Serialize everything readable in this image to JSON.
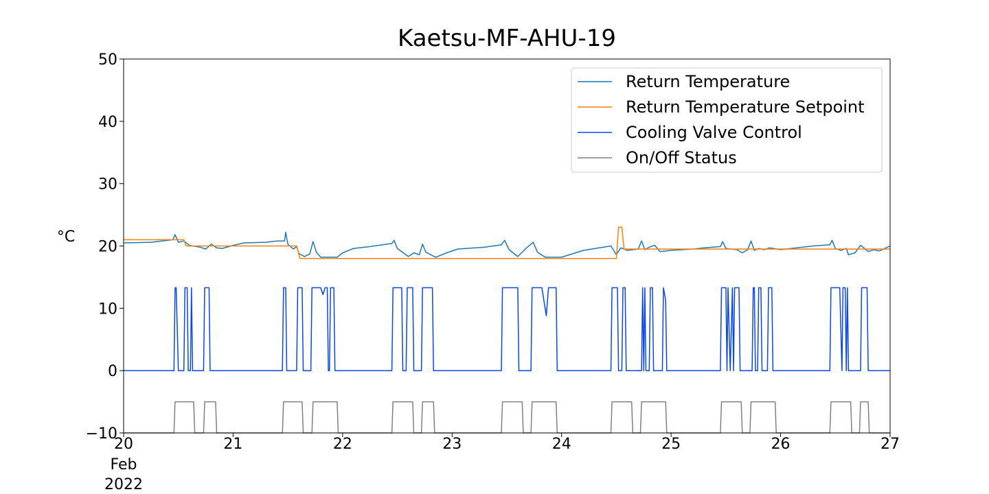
{
  "chart_data": {
    "type": "line",
    "title": "Kaetsu-MF-AHU-19",
    "xlabel": "",
    "ylabel": "°C",
    "xlim": [
      20,
      27
    ],
    "ylim": [
      -10,
      50
    ],
    "x_ticks": [
      20,
      21,
      22,
      23,
      24,
      25,
      26,
      27
    ],
    "x_tick_labels": [
      "20",
      "21",
      "22",
      "23",
      "24",
      "25",
      "26",
      "27"
    ],
    "x_first_tick_sublabels": [
      "Feb",
      "2022"
    ],
    "y_ticks": [
      -10,
      0,
      10,
      20,
      30,
      40,
      50
    ],
    "y_tick_labels": [
      "−10",
      "0",
      "10",
      "20",
      "30",
      "40",
      "50"
    ],
    "grid": false,
    "legend": "top-right",
    "series": [
      {
        "name": "Return Temperature",
        "color": "#1f77b4",
        "points": [
          [
            20.0,
            20.5
          ],
          [
            20.25,
            20.6
          ],
          [
            20.45,
            21.0
          ],
          [
            20.47,
            21.8
          ],
          [
            20.5,
            20.6
          ],
          [
            20.55,
            20.8
          ],
          [
            20.6,
            20.1
          ],
          [
            20.7,
            19.8
          ],
          [
            20.75,
            19.5
          ],
          [
            20.8,
            20.3
          ],
          [
            20.85,
            19.7
          ],
          [
            20.9,
            19.6
          ],
          [
            21.0,
            20.1
          ],
          [
            21.1,
            20.5
          ],
          [
            21.3,
            20.6
          ],
          [
            21.4,
            20.8
          ],
          [
            21.47,
            20.8
          ],
          [
            21.48,
            22.2
          ],
          [
            21.5,
            20.3
          ],
          [
            21.55,
            19.5
          ],
          [
            21.58,
            19.9
          ],
          [
            21.6,
            18.8
          ],
          [
            21.65,
            18.3
          ],
          [
            21.7,
            18.7
          ],
          [
            21.73,
            20.7
          ],
          [
            21.76,
            19.0
          ],
          [
            21.8,
            18.2
          ],
          [
            21.95,
            18.2
          ],
          [
            22.0,
            18.9
          ],
          [
            22.1,
            19.6
          ],
          [
            22.25,
            19.9
          ],
          [
            22.45,
            20.4
          ],
          [
            22.47,
            20.9
          ],
          [
            22.5,
            19.6
          ],
          [
            22.6,
            18.3
          ],
          [
            22.65,
            18.9
          ],
          [
            22.7,
            18.6
          ],
          [
            22.73,
            20.3
          ],
          [
            22.76,
            19.0
          ],
          [
            22.85,
            18.2
          ],
          [
            22.95,
            18.9
          ],
          [
            23.05,
            19.5
          ],
          [
            23.3,
            19.8
          ],
          [
            23.45,
            20.2
          ],
          [
            23.48,
            20.9
          ],
          [
            23.52,
            19.4
          ],
          [
            23.6,
            18.3
          ],
          [
            23.68,
            19.7
          ],
          [
            23.74,
            20.6
          ],
          [
            23.78,
            19.0
          ],
          [
            23.85,
            18.2
          ],
          [
            24.0,
            18.2
          ],
          [
            24.2,
            19.3
          ],
          [
            24.45,
            20.0
          ],
          [
            24.5,
            18.6
          ],
          [
            24.54,
            19.7
          ],
          [
            24.6,
            19.3
          ],
          [
            24.7,
            19.5
          ],
          [
            24.73,
            20.8
          ],
          [
            24.76,
            19.4
          ],
          [
            24.8,
            19.8
          ],
          [
            24.85,
            20.1
          ],
          [
            24.9,
            19.1
          ],
          [
            25.0,
            19.3
          ],
          [
            25.2,
            19.5
          ],
          [
            25.3,
            19.7
          ],
          [
            25.45,
            19.9
          ],
          [
            25.47,
            20.7
          ],
          [
            25.5,
            19.6
          ],
          [
            25.6,
            19.4
          ],
          [
            25.65,
            18.9
          ],
          [
            25.7,
            19.4
          ],
          [
            25.73,
            20.8
          ],
          [
            25.76,
            19.3
          ],
          [
            25.8,
            19.6
          ],
          [
            25.85,
            19.4
          ],
          [
            25.9,
            19.7
          ],
          [
            26.0,
            19.4
          ],
          [
            26.2,
            19.8
          ],
          [
            26.3,
            20.0
          ],
          [
            26.45,
            20.2
          ],
          [
            26.47,
            20.9
          ],
          [
            26.5,
            19.6
          ],
          [
            26.55,
            19.3
          ],
          [
            26.6,
            19.6
          ],
          [
            26.62,
            18.6
          ],
          [
            26.68,
            18.9
          ],
          [
            26.73,
            20.1
          ],
          [
            26.76,
            19.7
          ],
          [
            26.8,
            19.1
          ],
          [
            26.85,
            19.4
          ],
          [
            26.9,
            19.2
          ],
          [
            27.0,
            20.0
          ]
        ]
      },
      {
        "name": "Return Temperature Setpoint",
        "color": "#ff7f0e",
        "points": [
          [
            20.0,
            21.0
          ],
          [
            20.55,
            21.0
          ],
          [
            20.57,
            20.0
          ],
          [
            21.58,
            20.0
          ],
          [
            21.61,
            18.0
          ],
          [
            24.5,
            18.0
          ],
          [
            24.52,
            23.0
          ],
          [
            24.55,
            23.0
          ],
          [
            24.57,
            19.5
          ],
          [
            27.0,
            19.5
          ]
        ]
      },
      {
        "name": "Cooling Valve Control",
        "color": "#0b47e4",
        "points": [
          [
            20.0,
            0
          ],
          [
            20.46,
            0
          ],
          [
            20.47,
            13.3
          ],
          [
            20.48,
            13.3
          ],
          [
            20.5,
            0
          ],
          [
            20.55,
            0
          ],
          [
            20.56,
            13.3
          ],
          [
            20.58,
            13.3
          ],
          [
            20.59,
            0
          ],
          [
            20.61,
            0
          ],
          [
            20.62,
            13.3
          ],
          [
            20.63,
            0
          ],
          [
            20.73,
            0
          ],
          [
            20.74,
            13.3
          ],
          [
            20.78,
            13.3
          ],
          [
            20.79,
            0
          ],
          [
            21.45,
            0
          ],
          [
            21.46,
            13.3
          ],
          [
            21.48,
            13.3
          ],
          [
            21.49,
            0
          ],
          [
            21.58,
            0
          ],
          [
            21.59,
            13.3
          ],
          [
            21.63,
            13.3
          ],
          [
            21.64,
            0
          ],
          [
            21.71,
            0
          ],
          [
            21.72,
            13.3
          ],
          [
            21.8,
            13.3
          ],
          [
            21.82,
            12.2
          ],
          [
            21.84,
            13.3
          ],
          [
            21.86,
            13.3
          ],
          [
            21.87,
            0
          ],
          [
            21.88,
            0
          ],
          [
            21.89,
            13.3
          ],
          [
            21.92,
            13.3
          ],
          [
            21.93,
            0
          ],
          [
            22.45,
            0
          ],
          [
            22.46,
            13.3
          ],
          [
            22.54,
            13.3
          ],
          [
            22.55,
            0
          ],
          [
            22.58,
            0
          ],
          [
            22.59,
            13.3
          ],
          [
            22.64,
            13.3
          ],
          [
            22.65,
            0
          ],
          [
            22.72,
            0
          ],
          [
            22.73,
            13.3
          ],
          [
            22.82,
            13.3
          ],
          [
            22.83,
            0
          ],
          [
            23.45,
            0
          ],
          [
            23.46,
            13.3
          ],
          [
            23.6,
            13.3
          ],
          [
            23.61,
            0
          ],
          [
            23.72,
            0
          ],
          [
            23.73,
            13.3
          ],
          [
            23.82,
            13.3
          ],
          [
            23.86,
            8.8
          ],
          [
            23.88,
            13.3
          ],
          [
            23.95,
            13.3
          ],
          [
            23.96,
            0
          ],
          [
            24.45,
            0
          ],
          [
            24.46,
            13.3
          ],
          [
            24.51,
            13.3
          ],
          [
            24.52,
            0
          ],
          [
            24.55,
            0
          ],
          [
            24.56,
            13.3
          ],
          [
            24.58,
            13.3
          ],
          [
            24.59,
            0
          ],
          [
            24.73,
            0
          ],
          [
            24.74,
            13.3
          ],
          [
            24.75,
            0
          ],
          [
            24.76,
            13.3
          ],
          [
            24.77,
            0
          ],
          [
            24.8,
            0
          ],
          [
            24.81,
            13.3
          ],
          [
            24.83,
            13.3
          ],
          [
            24.84,
            0
          ],
          [
            24.92,
            0
          ],
          [
            24.93,
            13.3
          ],
          [
            24.95,
            11.3
          ],
          [
            24.96,
            0
          ],
          [
            25.45,
            0
          ],
          [
            25.46,
            13.3
          ],
          [
            25.5,
            13.3
          ],
          [
            25.51,
            0
          ],
          [
            25.52,
            13.3
          ],
          [
            25.54,
            0
          ],
          [
            25.56,
            13.3
          ],
          [
            25.57,
            0
          ],
          [
            25.58,
            13.3
          ],
          [
            25.62,
            13.3
          ],
          [
            25.63,
            0
          ],
          [
            25.74,
            0
          ],
          [
            25.75,
            13.3
          ],
          [
            25.76,
            13.3
          ],
          [
            25.77,
            0
          ],
          [
            25.79,
            0
          ],
          [
            25.8,
            13.3
          ],
          [
            25.82,
            13.3
          ],
          [
            25.83,
            0
          ],
          [
            25.88,
            0
          ],
          [
            25.89,
            13.3
          ],
          [
            25.92,
            13.3
          ],
          [
            25.93,
            0
          ],
          [
            26.45,
            0
          ],
          [
            26.46,
            13.3
          ],
          [
            26.54,
            13.3
          ],
          [
            26.56,
            0
          ],
          [
            26.57,
            13.3
          ],
          [
            26.59,
            13.3
          ],
          [
            26.6,
            0
          ],
          [
            26.61,
            13.3
          ],
          [
            26.62,
            0
          ],
          [
            26.73,
            0
          ],
          [
            26.74,
            13.3
          ],
          [
            26.79,
            13.3
          ],
          [
            26.8,
            0
          ],
          [
            27.0,
            0
          ]
        ]
      },
      {
        "name": "On/Off Status",
        "color": "#808080",
        "points": [
          [
            20.0,
            -10
          ],
          [
            20.46,
            -10
          ],
          [
            20.47,
            -5
          ],
          [
            20.64,
            -5
          ],
          [
            20.65,
            -10
          ],
          [
            20.73,
            -10
          ],
          [
            20.74,
            -5
          ],
          [
            20.84,
            -5
          ],
          [
            20.85,
            -10
          ],
          [
            21.45,
            -10
          ],
          [
            21.46,
            -5
          ],
          [
            21.63,
            -5
          ],
          [
            21.64,
            -10
          ],
          [
            21.72,
            -10
          ],
          [
            21.73,
            -5
          ],
          [
            21.95,
            -5
          ],
          [
            21.96,
            -10
          ],
          [
            22.45,
            -10
          ],
          [
            22.46,
            -5
          ],
          [
            22.64,
            -5
          ],
          [
            22.65,
            -10
          ],
          [
            22.72,
            -10
          ],
          [
            22.73,
            -5
          ],
          [
            22.83,
            -5
          ],
          [
            22.84,
            -10
          ],
          [
            23.45,
            -10
          ],
          [
            23.46,
            -5
          ],
          [
            23.64,
            -5
          ],
          [
            23.65,
            -10
          ],
          [
            23.72,
            -10
          ],
          [
            23.73,
            -5
          ],
          [
            23.95,
            -5
          ],
          [
            23.96,
            -10
          ],
          [
            24.45,
            -10
          ],
          [
            24.46,
            -5
          ],
          [
            24.64,
            -5
          ],
          [
            24.65,
            -10
          ],
          [
            24.72,
            -10
          ],
          [
            24.73,
            -5
          ],
          [
            24.95,
            -5
          ],
          [
            24.96,
            -10
          ],
          [
            25.45,
            -10
          ],
          [
            25.46,
            -5
          ],
          [
            25.64,
            -5
          ],
          [
            25.65,
            -10
          ],
          [
            25.72,
            -10
          ],
          [
            25.73,
            -5
          ],
          [
            25.95,
            -5
          ],
          [
            25.96,
            -10
          ],
          [
            26.45,
            -10
          ],
          [
            26.46,
            -5
          ],
          [
            26.64,
            -5
          ],
          [
            26.65,
            -10
          ],
          [
            26.72,
            -10
          ],
          [
            26.73,
            -5
          ],
          [
            26.8,
            -5
          ],
          [
            26.81,
            -10
          ],
          [
            27.0,
            -10
          ]
        ]
      }
    ]
  }
}
